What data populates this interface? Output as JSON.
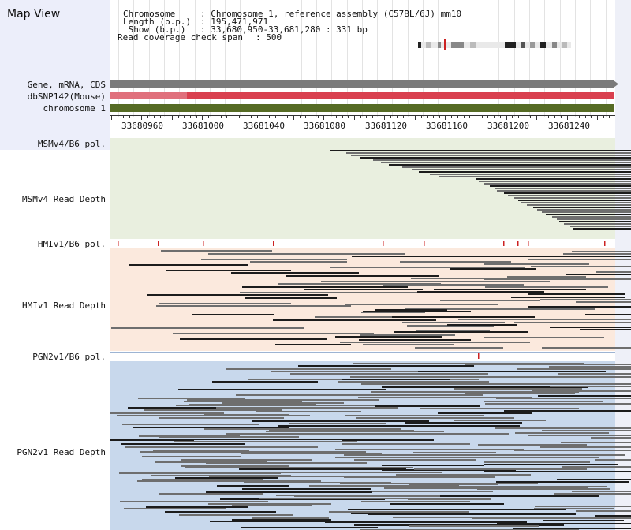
{
  "window": {
    "title": "Map View"
  },
  "info": {
    "rows": [
      {
        "label": "Chromosome    ",
        "value": ": Chromosome 1, reference assembly (C57BL/6J) mm10"
      },
      {
        "label": "Length (b.p.) ",
        "value": ": 195,471,971"
      },
      {
        "label": " Show (b.p.)  ",
        "value": ": 33,680,950-33,681,280 : 331 bp"
      },
      {
        "label": "Read coverage check span",
        "value": ": 500"
      }
    ]
  },
  "tracks": {
    "gene": {
      "label": "Gene, mRNA, CDS",
      "color": "#7a7a7a"
    },
    "snp": {
      "label": "dbSNP142(Mouse)",
      "color": "#d9404f",
      "light_color": "#e0707c"
    },
    "chromosome": {
      "label": "chromosome 1",
      "color": "#566b24"
    }
  },
  "axis": {
    "ticks": [
      "33680960",
      "33681000",
      "33681040",
      "33681080",
      "33681120",
      "33681160",
      "33681200",
      "33681240"
    ]
  },
  "groups": [
    {
      "pol_label": "MSMv4/B6 pol.",
      "depth_label": "MSMv4 Read Depth",
      "bg": "#e9efdf"
    },
    {
      "pol_label": "HMIv1/B6 pol.",
      "depth_label": "HMIv1 Read Depth",
      "bg": "#fbe9dd"
    },
    {
      "pol_label": "PGN2v1/B6 pol.",
      "depth_label": "PGN2v1 Read Depth",
      "bg": "#c8d8ec"
    }
  ],
  "colors": {
    "left_panel": "#eceefa",
    "read_dark": "#1c1c1c",
    "read_light": "#6e6e6e",
    "pol_mark": "#cc2222",
    "grid": "#cfcfcf"
  }
}
